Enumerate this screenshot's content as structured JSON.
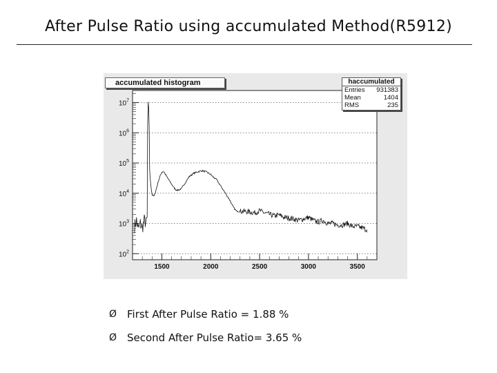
{
  "slide": {
    "title": "After Pulse Ratio using accumulated Method(R5912)"
  },
  "histogram_title": "accumulated histogram",
  "stats": {
    "name": "haccumulated",
    "rows": [
      {
        "label": "Entries",
        "value": "931383"
      },
      {
        "label": "Mean",
        "value": "1404"
      },
      {
        "label": "RMS",
        "value": "235"
      }
    ]
  },
  "bullets": {
    "mark": "Ø",
    "items": [
      "First After Pulse Ratio = 1.88 %",
      "Second After Pulse Ratio= 3.65 %"
    ]
  },
  "chart_data": {
    "type": "line",
    "title": "accumulated histogram",
    "xlabel": "",
    "ylabel": "",
    "xlim": [
      1200,
      3700
    ],
    "ylim": [
      1.8,
      7.4
    ],
    "log_y": true,
    "grid": "horizontal-dotted",
    "x_ticks": [
      1500,
      2000,
      2500,
      3000,
      3500
    ],
    "y_ticks": [
      {
        "exp": 2,
        "label_base": "10",
        "label_exp": "2"
      },
      {
        "exp": 3,
        "label_base": "10",
        "label_exp": "3"
      },
      {
        "exp": 4,
        "label_base": "10",
        "label_exp": "4"
      },
      {
        "exp": 5,
        "label_base": "10",
        "label_exp": "5"
      },
      {
        "exp": 6,
        "label_base": "10",
        "label_exp": "6"
      },
      {
        "exp": 7,
        "label_base": "10",
        "label_exp": "7"
      }
    ],
    "series": [
      {
        "x": [
          1220,
          1240,
          1260,
          1280,
          1300,
          1320,
          1340,
          1350,
          1355,
          1360,
          1365,
          1370,
          1375,
          1380,
          1390,
          1400,
          1420,
          1440,
          1460,
          1480,
          1500,
          1520,
          1540,
          1560,
          1580,
          1600,
          1620,
          1640,
          1660,
          1680,
          1700,
          1720,
          1740,
          1760,
          1780,
          1800,
          1820,
          1840,
          1860,
          1880,
          1900,
          1920,
          1940,
          1960,
          1980,
          2000,
          2020,
          2040,
          2060,
          2080,
          2100,
          2120,
          2140,
          2160,
          2180,
          2200,
          2220,
          2240,
          2260,
          2280,
          2300,
          2350,
          2400,
          2450,
          2500,
          2550,
          2600,
          2650,
          2700,
          2750,
          2800,
          2850,
          2900,
          2950,
          3000,
          3050,
          3100,
          3150,
          3200,
          3250,
          3300,
          3350,
          3400,
          3450,
          3500,
          3550,
          3600
        ],
        "log10_values": [
          2.9,
          3.1,
          2.8,
          3.0,
          2.85,
          3.1,
          3.0,
          3.2,
          6.3,
          7.0,
          6.8,
          6.2,
          4.8,
          4.5,
          4.2,
          3.95,
          3.9,
          4.1,
          4.35,
          4.55,
          4.7,
          4.72,
          4.6,
          4.5,
          4.4,
          4.3,
          4.2,
          4.12,
          4.1,
          4.12,
          4.15,
          4.25,
          4.35,
          4.45,
          4.55,
          4.6,
          4.65,
          4.68,
          4.7,
          4.72,
          4.74,
          4.74,
          4.72,
          4.7,
          4.66,
          4.62,
          4.55,
          4.5,
          4.45,
          4.35,
          4.25,
          4.15,
          4.05,
          3.95,
          3.85,
          3.75,
          3.6,
          3.5,
          3.42,
          3.4,
          3.4,
          3.4,
          3.38,
          3.35,
          3.42,
          3.35,
          3.3,
          3.25,
          3.28,
          3.2,
          3.18,
          3.15,
          3.1,
          3.15,
          3.2,
          3.1,
          3.05,
          3.1,
          3.0,
          3.0,
          2.95,
          2.95,
          3.0,
          2.9,
          2.9,
          2.85,
          2.8
        ]
      }
    ]
  }
}
